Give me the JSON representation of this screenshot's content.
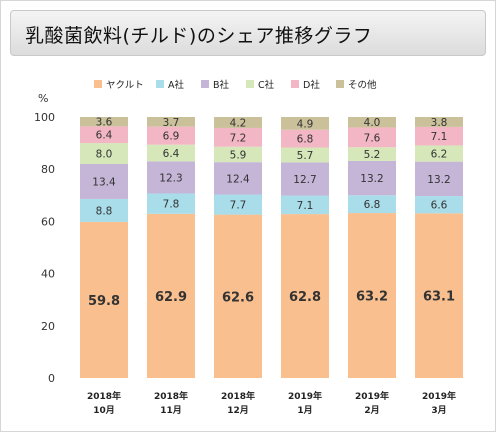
{
  "title": "乳酸菌飲料(チルド)のシェア推移グラフ",
  "chart_data": {
    "type": "bar",
    "stacked": true,
    "yunit": "%",
    "ylim": [
      0,
      100
    ],
    "yticks": [
      0,
      20,
      40,
      60,
      80,
      100
    ],
    "grid": false,
    "legend_position": "top",
    "categories": [
      [
        "2018年",
        "10月"
      ],
      [
        "2018年",
        "11月"
      ],
      [
        "2018年",
        "12月"
      ],
      [
        "2019年",
        "1月"
      ],
      [
        "2019年",
        "2月"
      ],
      [
        "2019年",
        "3月"
      ]
    ],
    "series": [
      {
        "name": "ヤクルト",
        "color": "#f9bf8f",
        "values": [
          59.8,
          62.9,
          62.6,
          62.8,
          63.2,
          63.1
        ]
      },
      {
        "name": "A社",
        "color": "#a9dde9",
        "values": [
          8.8,
          7.8,
          7.7,
          7.1,
          6.8,
          6.6
        ]
      },
      {
        "name": "B社",
        "color": "#c5b6d8",
        "values": [
          13.4,
          12.3,
          12.4,
          12.7,
          13.2,
          13.2
        ]
      },
      {
        "name": "C社",
        "color": "#d6e8b9",
        "values": [
          8.0,
          6.4,
          5.9,
          5.7,
          5.2,
          6.2
        ]
      },
      {
        "name": "D社",
        "color": "#f3b6c4",
        "values": [
          6.4,
          6.9,
          7.2,
          6.8,
          7.6,
          7.1
        ]
      },
      {
        "name": "その他",
        "color": "#cac19b",
        "values": [
          3.6,
          3.7,
          4.2,
          4.9,
          4.0,
          3.8
        ]
      }
    ]
  }
}
